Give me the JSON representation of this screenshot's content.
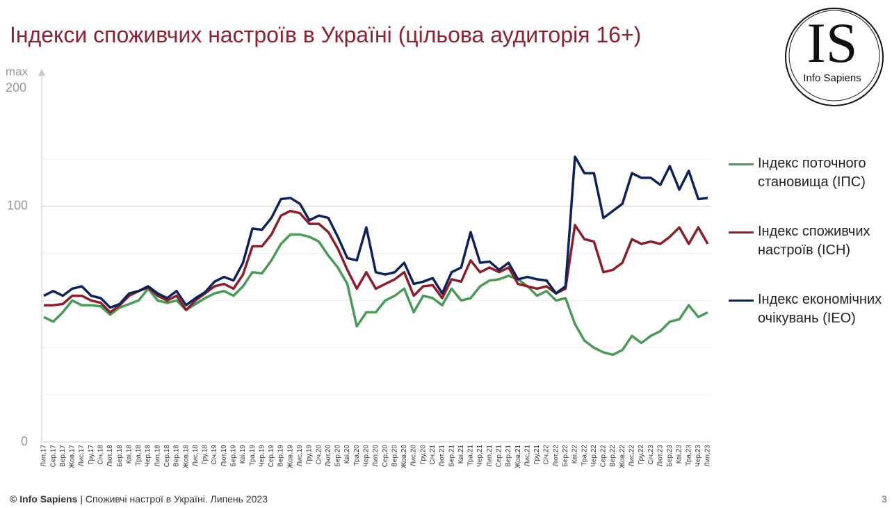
{
  "chart_data": {
    "type": "line",
    "title": "Індекси споживчих настроїв в Україні (цільова аудиторія 16+)",
    "y_axis_annotation": [
      "max",
      "200"
    ],
    "categories": [
      "Лип.17",
      "Сер.17",
      "Вер.17",
      "Жов.17",
      "Лис.17",
      "Гру.17",
      "Січ.18",
      "Лют.18",
      "Бер.18",
      "Кві.18",
      "Тра.18",
      "Чер.18",
      "Лип.18",
      "Сер.18",
      "Вер.18",
      "Жов.18",
      "Лис.18",
      "Гру.18",
      "Січ.19",
      "Лют.19",
      "Бер.19",
      "Кві.19",
      "Тра.19",
      "Чер.19",
      "Сер.19",
      "Вер.19",
      "Жов.19",
      "Лис.19",
      "Гру.19",
      "Січ.20",
      "Лют.20",
      "Бер.20",
      "Кві.20",
      "Тра.20",
      "Чер.20",
      "Лип.20",
      "Сер.20",
      "Вер.20",
      "Жов.20",
      "Лис.20",
      "Гру.20",
      "Січ.21",
      "Лют.21",
      "Бер.21",
      "Кві.21",
      "Тра.21",
      "Чер.21",
      "Лип.21",
      "Сер.21",
      "Вер.21",
      "Жов.21",
      "Лис.21",
      "Гру.21",
      "Січ.22",
      "Лют.22",
      "Бер.22",
      "Кві.22",
      "Тра.22",
      "Чер.22",
      "Сер.22",
      "Вер.22",
      "Жов.22",
      "Лис.22",
      "Гру.22",
      "Січ.23",
      "Лют.23",
      "Бер.23",
      "Кві.23",
      "Тра.23",
      "Чер.23",
      "Лип.23"
    ],
    "series": [
      {
        "name": "Індекс поточного становища (ІПС)",
        "color": "#4a9a57",
        "values": [
          53,
          51,
          55,
          60,
          58,
          58,
          57.5,
          54,
          57,
          58.5,
          60,
          65,
          60,
          59,
          60,
          56,
          58.5,
          61,
          63,
          64,
          62,
          66,
          72,
          71.5,
          77,
          84,
          88,
          88,
          87,
          85,
          79,
          74,
          67,
          49,
          55,
          55,
          60,
          62,
          65,
          55,
          62,
          61,
          58,
          65,
          60,
          61,
          66,
          68.5,
          69,
          70.5,
          69,
          66,
          62,
          64,
          60,
          61,
          50,
          43,
          40,
          38,
          37,
          39,
          45,
          42,
          45,
          47,
          51,
          52,
          58,
          53,
          55
        ]
      },
      {
        "name": "Індекс споживчих настроїв (ІСН)",
        "color": "#8b1e2b",
        "values": [
          58,
          58,
          58.5,
          62,
          62,
          60,
          59,
          55,
          58,
          62,
          64,
          65.5,
          62,
          60,
          62,
          56,
          60,
          63,
          66,
          67,
          65,
          71,
          83,
          83,
          88,
          96,
          98,
          97,
          92.5,
          92.5,
          89,
          82,
          73,
          65,
          72,
          65,
          67,
          69,
          72,
          62,
          66,
          66.5,
          61,
          69,
          68,
          77,
          72,
          74,
          72,
          74,
          67,
          66,
          65,
          66,
          63,
          65,
          92,
          86,
          85,
          72,
          73,
          76,
          86,
          84,
          85,
          84,
          87,
          91,
          84,
          91,
          84
        ]
      },
      {
        "name": "Індекс економічних очікувань (ІЕО)",
        "color": "#0d2259",
        "values": [
          62,
          64,
          62,
          65,
          66,
          62,
          61,
          57,
          58.5,
          63,
          64,
          66,
          63,
          61,
          64,
          58,
          61,
          63.5,
          68,
          70,
          68.5,
          76,
          90.5,
          90,
          95,
          103,
          103.5,
          101,
          94,
          96,
          95,
          87,
          78,
          77,
          91,
          72,
          71,
          72,
          76,
          67,
          68,
          69.5,
          63,
          72,
          74,
          89,
          76,
          76.5,
          73,
          76,
          69,
          70,
          69,
          68.5,
          63,
          66,
          121,
          114,
          114,
          95,
          98,
          101,
          114,
          112,
          112,
          109,
          117,
          107,
          115,
          103,
          103.5
        ]
      }
    ],
    "ylim": [
      0,
      150
    ],
    "yticks": [
      0,
      100
    ],
    "minor_gridlines": [
      20,
      40,
      60,
      80,
      120
    ],
    "grid": true,
    "legend": "right"
  },
  "logo": {
    "mark": "IS",
    "name": "Info Sapiens"
  },
  "footer": {
    "source": "© Info Sapiens",
    "text": "| Споживчі настрої в Україні. Липень 2023"
  },
  "page_number": 3
}
